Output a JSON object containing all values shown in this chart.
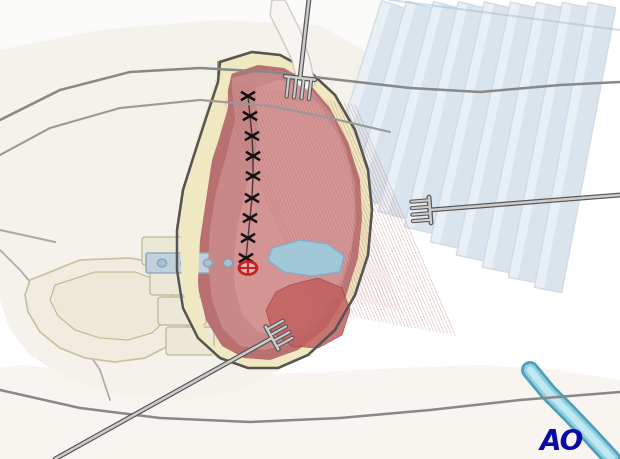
{
  "bg_color": "#ffffff",
  "figsize": [
    6.2,
    4.59
  ],
  "dpi": 100,
  "ao_text": "AO",
  "ao_color": "#0a0aaa",
  "ao_fontsize": 20,
  "skin_light": "#f5f0e8",
  "skin_cream": "#ede5d5",
  "skin_dark": "#ddd5c0",
  "fat_yellow": "#f0e8c0",
  "fat_yellow2": "#e8dca8",
  "muscle_pink": "#cc8888",
  "muscle_light": "#dda0a0",
  "muscle_dark": "#b87070",
  "muscle_fiber": "#c07878",
  "muscle_fiber2": "#d09090",
  "bone_cream": "#ede8d8",
  "bone_light": "#f5f0e5",
  "rib_blue": "#d0dde8",
  "rib_dark": "#a8c0d0",
  "rib_inner": "#e8f0f5",
  "blue_strip": "#a0c8d8",
  "blue_strip2": "#80b0c8",
  "retractor_dark": "#555555",
  "retractor_mid": "#888888",
  "retractor_light": "#cccccc",
  "suture_color": "#111111",
  "red_marker": "#cc2020",
  "tube_outer": "#70b8c8",
  "tube_inner": "#b8dde8",
  "spine_hardware": "#90b0c8",
  "outline_color": "#666666",
  "body_outline": "#888888"
}
